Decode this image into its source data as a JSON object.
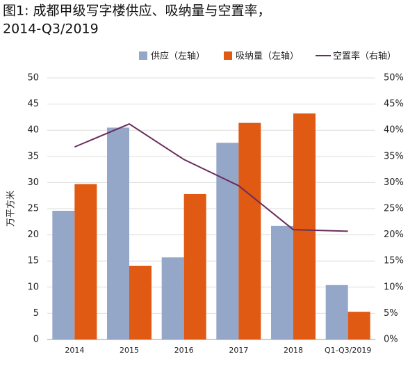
{
  "chart_data": {
    "type": "bar_line",
    "title": [
      "图1: 成都甲级写字楼供应、吸纳量与空置率，",
      "2014-Q3/2019"
    ],
    "ylabel": "万平方米",
    "categories": [
      "2014",
      "2015",
      "2016",
      "2017",
      "2018",
      "Q1-Q3/2019"
    ],
    "series": [
      {
        "name": "供应（左轴）",
        "color": "#94a7c9",
        "type": "bar",
        "values": [
          24.6,
          40.5,
          15.7,
          37.6,
          21.7,
          10.4
        ]
      },
      {
        "name": "吸纳量（左轴）",
        "color": "#e05a13",
        "type": "bar",
        "values": [
          29.7,
          14.1,
          27.8,
          41.4,
          43.2,
          5.3
        ]
      },
      {
        "name": "空置率（右轴）",
        "color": "#6b2d5c",
        "type": "line",
        "axis": "y2",
        "values": [
          36.8,
          41.2,
          34.4,
          29.4,
          21.0,
          20.7
        ]
      }
    ],
    "ylim": [
      0,
      50
    ],
    "yticks": [
      0,
      5,
      10,
      15,
      20,
      25,
      30,
      35,
      40,
      45,
      50
    ],
    "y2lim": [
      0,
      50
    ],
    "y2ticks": [
      {
        "value": 0,
        "label": "0%"
      },
      {
        "value": 5,
        "label": "5%"
      },
      {
        "value": 10,
        "label": "10%"
      },
      {
        "value": 15,
        "label": "15%"
      },
      {
        "value": 20,
        "label": "20%"
      },
      {
        "value": 25,
        "label": "25%"
      },
      {
        "value": 30,
        "label": "30%"
      },
      {
        "value": 35,
        "label": "35%"
      },
      {
        "value": 40,
        "label": "40%"
      },
      {
        "value": 45,
        "label": "45%"
      },
      {
        "value": 50,
        "label": "50%"
      }
    ],
    "grid": true
  }
}
